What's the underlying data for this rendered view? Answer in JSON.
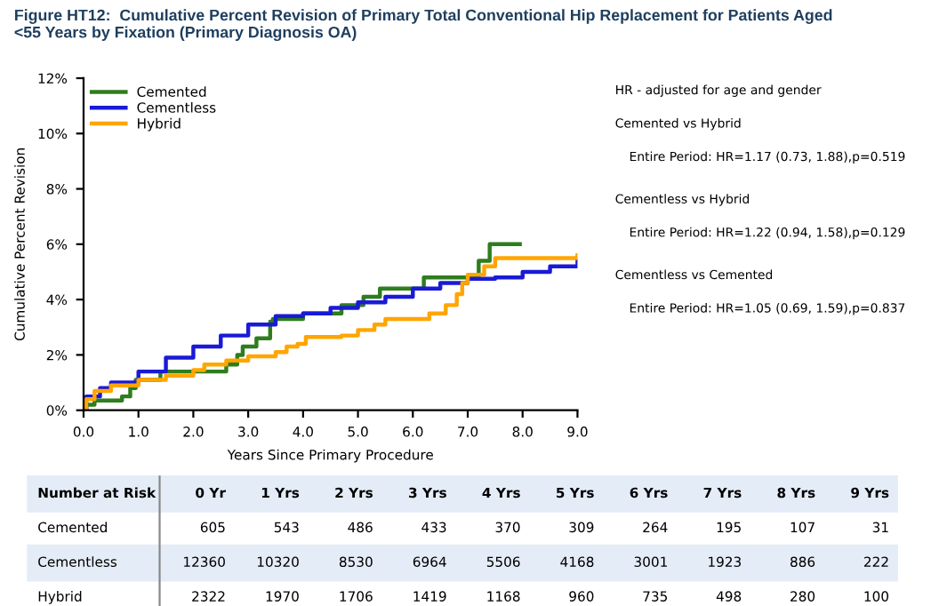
{
  "chart_data": {
    "type": "step",
    "title": "Figure HT12:  Cumulative Percent Revision of Primary Total Conventional Hip Replacement for Patients Aged\n<55 Years by Fixation (Primary Diagnosis OA)",
    "xlabel": "Years Since Primary Procedure",
    "ylabel": "Cumulative Percent Revision",
    "xlim": [
      0,
      9
    ],
    "xticks": [
      {
        "value": 0,
        "label": "0.0"
      },
      {
        "value": 1,
        "label": "1.0"
      },
      {
        "value": 2,
        "label": "2.0"
      },
      {
        "value": 3,
        "label": "3.0"
      },
      {
        "value": 4,
        "label": "4.0"
      },
      {
        "value": 5,
        "label": "5.0"
      },
      {
        "value": 6,
        "label": "6.0"
      },
      {
        "value": 7,
        "label": "7.0"
      },
      {
        "value": 8,
        "label": "8.0"
      },
      {
        "value": 9,
        "label": "9.0"
      }
    ],
    "ylim": [
      0,
      12
    ],
    "yticks": [
      {
        "value": 0,
        "label": "0%"
      },
      {
        "value": 2,
        "label": "2%"
      },
      {
        "value": 4,
        "label": "4%"
      },
      {
        "value": 6,
        "label": "6%"
      },
      {
        "value": 8,
        "label": "8%"
      },
      {
        "value": 10,
        "label": "10%"
      },
      {
        "value": 12,
        "label": "12%"
      }
    ],
    "legend": "top left",
    "grid": false,
    "series": [
      {
        "name": "Cemented",
        "color": "#2e7d1e",
        "x": [
          0,
          0.05,
          0.2,
          0.7,
          0.85,
          0.95,
          1.4,
          2.6,
          2.8,
          2.9,
          3.15,
          3.4,
          3.45,
          4.0,
          4.7,
          5.1,
          5.4,
          6.2,
          7.2,
          7.4,
          7.95
        ],
        "values": [
          0,
          0.2,
          0.35,
          0.5,
          0.8,
          1.1,
          1.4,
          1.65,
          2.0,
          2.3,
          2.6,
          3.2,
          3.3,
          3.5,
          3.8,
          4.1,
          4.4,
          4.8,
          5.4,
          6.0,
          6.0
        ]
      },
      {
        "name": "Cementless",
        "color": "#1a1ad6",
        "x": [
          0,
          0.05,
          0.3,
          0.5,
          1.0,
          1.5,
          2.0,
          2.5,
          3.0,
          3.5,
          4.0,
          4.5,
          5.0,
          5.5,
          6.0,
          6.5,
          7.0,
          7.5,
          8.0,
          8.5,
          9.0
        ],
        "values": [
          0,
          0.5,
          0.8,
          1.0,
          1.4,
          1.9,
          2.3,
          2.7,
          3.1,
          3.4,
          3.5,
          3.7,
          3.9,
          4.1,
          4.4,
          4.6,
          4.75,
          4.8,
          5.0,
          5.2,
          5.4
        ]
      },
      {
        "name": "Hybrid",
        "color": "#ffa500",
        "x": [
          0,
          0.05,
          0.2,
          0.5,
          1.0,
          1.5,
          2.0,
          2.2,
          2.6,
          3.0,
          3.5,
          3.7,
          3.9,
          4.05,
          4.7,
          5.0,
          5.3,
          5.5,
          6.3,
          6.6,
          6.8,
          6.9,
          7.0,
          7.3,
          7.5,
          9.0
        ],
        "values": [
          0,
          0.4,
          0.7,
          0.9,
          1.1,
          1.25,
          1.45,
          1.65,
          1.8,
          1.95,
          2.1,
          2.3,
          2.4,
          2.65,
          2.7,
          2.9,
          3.1,
          3.3,
          3.5,
          3.8,
          4.2,
          4.6,
          4.9,
          5.2,
          5.5,
          5.6
        ]
      }
    ],
    "annotations": [
      "HR - adjusted for age and gender",
      "Cemented vs Hybrid",
      "Entire Period: HR=1.17 (0.73, 1.88),p=0.519",
      "Cementless vs Hybrid",
      "Entire Period: HR=1.22 (0.94, 1.58),p=0.129",
      "Cementless vs Cemented",
      "Entire Period: HR=1.05 (0.69, 1.59),p=0.837",
      "Number at Risk",
      "0 Yr",
      "1 Yrs",
      "2 Yrs",
      "3 Yrs",
      "4 Yrs",
      "5 Yrs",
      "6 Yrs",
      "7 Yrs",
      "8 Yrs",
      "9 Yrs",
      "Cemented",
      "605",
      "543",
      "486",
      "433",
      "370",
      "309",
      "264",
      "195",
      "107",
      "31",
      "Cementless",
      "12360",
      "10320",
      "8530",
      "6964",
      "5506",
      "4168",
      "3001",
      "1923",
      "886",
      "222",
      "Hybrid",
      "2322",
      "1970",
      "1706",
      "1419",
      "1168",
      "960",
      "735",
      "498",
      "280",
      "100"
    ]
  }
}
